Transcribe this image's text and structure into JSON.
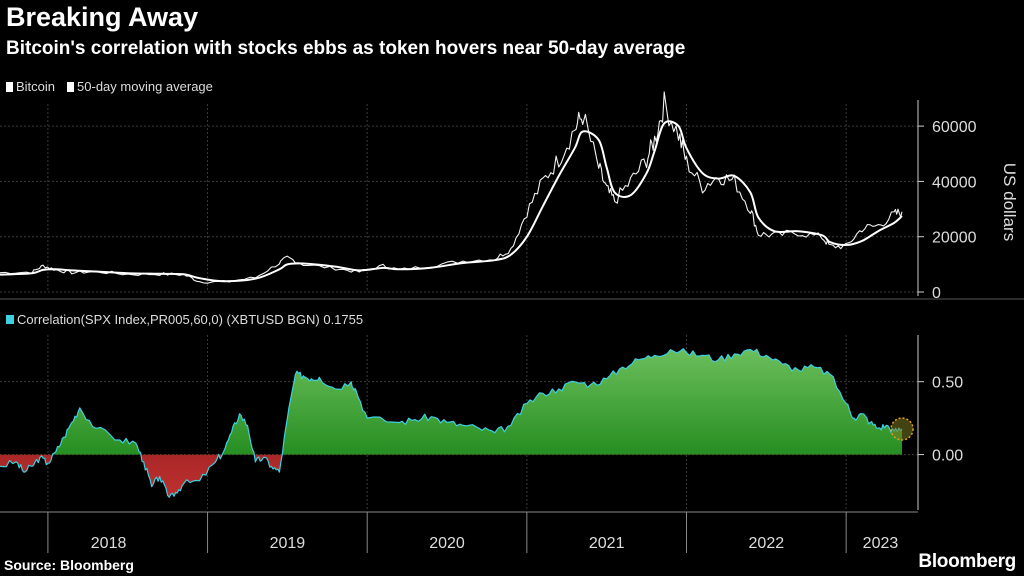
{
  "header": {
    "title": "Breaking Away",
    "subtitle": "Bitcoin's correlation with stocks ebbs as token hovers near 50-day average"
  },
  "source": "Source: Bloomberg",
  "brand": "Bloomberg",
  "colors": {
    "background": "#000000",
    "price_line": "#ffffff",
    "corr_line": "#3fd0e0",
    "positive_fill": "#1a9a1a",
    "negative_fill": "#a01010",
    "grid": "#3a3a3a"
  },
  "chart_data": [
    {
      "type": "line",
      "title": "Bitcoin price",
      "ylabel": "US dollars",
      "ylim": [
        0,
        68000
      ],
      "yticks": [
        0,
        20000,
        40000,
        60000
      ],
      "ytick_labels": [
        "0",
        "20000",
        "40000",
        "60000"
      ],
      "legend": [
        "Bitcoin",
        "50-day moving average"
      ],
      "x_range": [
        2017.7,
        2023.45
      ],
      "x": [
        2017.7,
        2017.9,
        2017.97,
        2018.05,
        2018.15,
        2018.3,
        2018.5,
        2018.7,
        2018.85,
        2018.95,
        2019.1,
        2019.3,
        2019.45,
        2019.5,
        2019.6,
        2019.8,
        2019.95,
        2020.1,
        2020.2,
        2020.4,
        2020.6,
        2020.8,
        2020.9,
        2021.0,
        2021.1,
        2021.2,
        2021.3,
        2021.35,
        2021.45,
        2021.5,
        2021.55,
        2021.65,
        2021.75,
        2021.8,
        2021.86,
        2021.95,
        2022.0,
        2022.1,
        2022.2,
        2022.3,
        2022.4,
        2022.45,
        2022.55,
        2022.7,
        2022.85,
        2022.9,
        2023.0,
        2023.1,
        2023.2,
        2023.3,
        2023.35
      ],
      "series": [
        {
          "name": "Bitcoin",
          "values": [
            7000,
            7200,
            9500,
            8000,
            7000,
            7400,
            6400,
            6500,
            6300,
            3800,
            3600,
            5200,
            10500,
            12500,
            10000,
            8500,
            7300,
            9500,
            8000,
            9500,
            11200,
            12000,
            15500,
            29000,
            40000,
            48000,
            59000,
            64000,
            45000,
            37000,
            33000,
            40000,
            48000,
            55000,
            68000,
            57000,
            47000,
            38000,
            42000,
            40000,
            30000,
            21000,
            20500,
            21500,
            19800,
            16500,
            16500,
            23000,
            24000,
            28000,
            29000
          ]
        },
        {
          "name": "50-day moving average",
          "values": [
            6300,
            6800,
            8000,
            8200,
            7800,
            7400,
            6800,
            6600,
            6400,
            5000,
            3900,
            4800,
            8200,
            10000,
            10300,
            9200,
            7800,
            8700,
            8200,
            8800,
            10500,
            11500,
            13500,
            20000,
            31000,
            42000,
            52000,
            58000,
            55000,
            45000,
            36000,
            35000,
            43000,
            51000,
            61000,
            60000,
            52000,
            43000,
            41000,
            42000,
            36000,
            27000,
            22000,
            22000,
            20500,
            18000,
            17000,
            18500,
            22000,
            25000,
            27500
          ]
        }
      ]
    },
    {
      "type": "area",
      "title": "Correlation(SPX Index,PR005,60,0) (XBTUSD BGN) 0.1755",
      "legend": [
        "Correlation(SPX Index,PR005,60,0) (XBTUSD BGN) 0.1755"
      ],
      "ylim": [
        -0.38,
        0.82
      ],
      "yticks": [
        0.0,
        0.5
      ],
      "ytick_labels": [
        "0.00",
        "0.50"
      ],
      "last_value": 0.1755,
      "x_range": [
        2017.7,
        2023.45
      ],
      "xtick_labels": [
        "2018",
        "2019",
        "2020",
        "2021",
        "2022",
        "2023"
      ],
      "year_boundaries": [
        2018.0,
        2019.0,
        2020.0,
        2021.0,
        2022.0,
        2023.0
      ],
      "x": [
        2017.7,
        2017.8,
        2017.85,
        2017.9,
        2017.95,
        2018.0,
        2018.05,
        2018.1,
        2018.15,
        2018.2,
        2018.3,
        2018.45,
        2018.55,
        2018.6,
        2018.65,
        2018.7,
        2018.75,
        2018.8,
        2018.85,
        2018.95,
        2019.05,
        2019.1,
        2019.15,
        2019.2,
        2019.25,
        2019.3,
        2019.35,
        2019.4,
        2019.45,
        2019.5,
        2019.55,
        2019.6,
        2019.65,
        2019.7,
        2019.8,
        2019.9,
        2019.93,
        2020.0,
        2020.2,
        2020.3,
        2020.4,
        2020.5,
        2020.6,
        2020.7,
        2020.8,
        2020.9,
        2021.0,
        2021.1,
        2021.2,
        2021.3,
        2021.4,
        2021.5,
        2021.6,
        2021.7,
        2021.8,
        2021.9,
        2022.0,
        2022.1,
        2022.2,
        2022.3,
        2022.4,
        2022.5,
        2022.6,
        2022.7,
        2022.8,
        2022.9,
        2023.0,
        2023.05,
        2023.1,
        2023.15,
        2023.2,
        2023.25,
        2023.3,
        2023.35
      ],
      "values": [
        -0.08,
        -0.05,
        -0.12,
        -0.08,
        -0.02,
        -0.06,
        0.02,
        0.12,
        0.22,
        0.32,
        0.18,
        0.1,
        0.08,
        -0.05,
        -0.22,
        -0.15,
        -0.28,
        -0.26,
        -0.2,
        -0.18,
        -0.05,
        0.02,
        0.15,
        0.28,
        0.2,
        -0.05,
        -0.02,
        -0.08,
        -0.12,
        0.25,
        0.55,
        0.54,
        0.52,
        0.53,
        0.45,
        0.5,
        0.44,
        0.25,
        0.22,
        0.24,
        0.26,
        0.22,
        0.2,
        0.18,
        0.15,
        0.2,
        0.35,
        0.42,
        0.45,
        0.5,
        0.48,
        0.52,
        0.6,
        0.65,
        0.68,
        0.72,
        0.7,
        0.68,
        0.65,
        0.69,
        0.72,
        0.68,
        0.62,
        0.58,
        0.6,
        0.55,
        0.35,
        0.25,
        0.28,
        0.22,
        0.18,
        0.2,
        0.16,
        0.1755
      ]
    }
  ]
}
